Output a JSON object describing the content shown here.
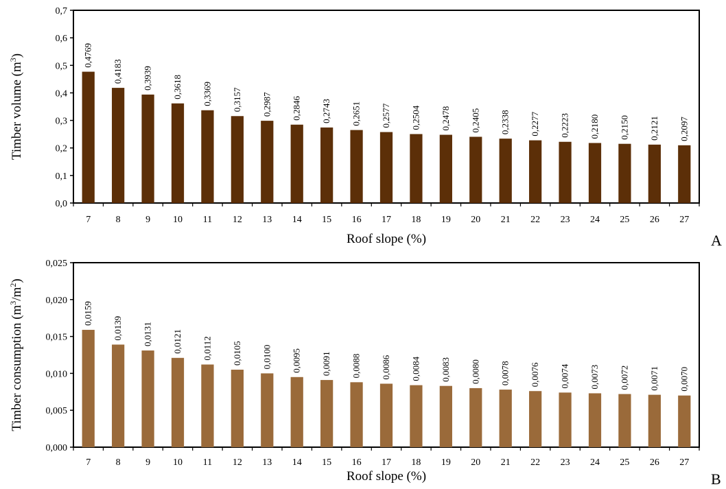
{
  "chart_data": [
    {
      "type": "bar",
      "panel_label": "A",
      "xlabel": "Roof slope (%)",
      "ylabel": "Timber volume (m",
      "ylabel_sup": "3",
      "ylabel_end": ")",
      "ylim": [
        0,
        0.7
      ],
      "yticks": [
        "0,0",
        "0,1",
        "0,2",
        "0,3",
        "0,4",
        "0,5",
        "0,6",
        "0,7"
      ],
      "ytick_values": [
        0,
        0.1,
        0.2,
        0.3,
        0.4,
        0.5,
        0.6,
        0.7
      ],
      "categories": [
        "7",
        "8",
        "9",
        "10",
        "11",
        "12",
        "13",
        "14",
        "15",
        "16",
        "17",
        "18",
        "19",
        "20",
        "21",
        "22",
        "23",
        "24",
        "25",
        "26",
        "27"
      ],
      "values": [
        0.4769,
        0.4183,
        0.3939,
        0.3618,
        0.3369,
        0.3157,
        0.2987,
        0.2846,
        0.2743,
        0.2651,
        0.2577,
        0.2504,
        0.2478,
        0.2405,
        0.2338,
        0.2277,
        0.2223,
        0.218,
        0.215,
        0.2121,
        0.2097
      ],
      "data_labels": [
        "0,4769",
        "0,4183",
        "0,3939",
        "0,3618",
        "0,3369",
        "0,3157",
        "0,2987",
        "0,2846",
        "0,2743",
        "0,2651",
        "0,2577",
        "0,2504",
        "0,2478",
        "0,2405",
        "0,2338",
        "0,2277",
        "0,2223",
        "0,2180",
        "0,2150",
        "0,2121",
        "0,2097"
      ],
      "bar_color": "#5c2f08",
      "grid": false
    },
    {
      "type": "bar",
      "panel_label": "B",
      "xlabel": "Roof slope (%)",
      "ylabel": "Timber consumption (m",
      "ylabel_sup": "3",
      "ylabel_mid": "/m",
      "ylabel_sup2": "2",
      "ylabel_end": ")",
      "ylim": [
        0,
        0.025
      ],
      "yticks": [
        "0,000",
        "0,005",
        "0,010",
        "0,015",
        "0,020",
        "0,025"
      ],
      "ytick_values": [
        0,
        0.005,
        0.01,
        0.015,
        0.02,
        0.025
      ],
      "categories": [
        "7",
        "8",
        "9",
        "10",
        "11",
        "12",
        "13",
        "14",
        "15",
        "16",
        "17",
        "18",
        "19",
        "20",
        "21",
        "22",
        "23",
        "24",
        "25",
        "26",
        "27"
      ],
      "values": [
        0.0159,
        0.0139,
        0.0131,
        0.0121,
        0.0112,
        0.0105,
        0.01,
        0.0095,
        0.0091,
        0.0088,
        0.0086,
        0.0084,
        0.0083,
        0.008,
        0.0078,
        0.0076,
        0.0074,
        0.0073,
        0.0072,
        0.0071,
        0.007
      ],
      "data_labels": [
        "0,0159",
        "0,0139",
        "0,0131",
        "0,0121",
        "0,0112",
        "0,0105",
        "0,0100",
        "0,0095",
        "0,0091",
        "0,0088",
        "0,0086",
        "0,0084",
        "0,0083",
        "0,0080",
        "0,0078",
        "0,0076",
        "0,0074",
        "0,0073",
        "0,0072",
        "0,0071",
        "0,0070"
      ],
      "bar_color": "#9a6a3a",
      "grid": false
    }
  ]
}
